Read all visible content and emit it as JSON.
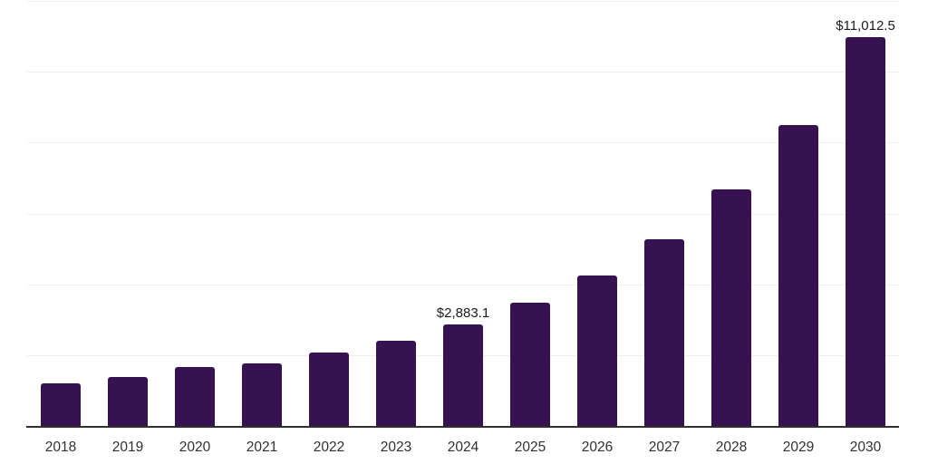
{
  "chart_data": {
    "type": "bar",
    "title": "",
    "subtitle": "",
    "xlabel": "",
    "ylabel": "",
    "categories": [
      "2018",
      "2019",
      "2020",
      "2021",
      "2022",
      "2023",
      "2024",
      "2025",
      "2026",
      "2027",
      "2028",
      "2029",
      "2030"
    ],
    "values": [
      1230,
      1405,
      1690,
      1790,
      2100,
      2430,
      2883.1,
      3505,
      4275,
      5295,
      6705,
      8520,
      11012.5
    ],
    "value_labels": [
      "",
      "",
      "",
      "",
      "",
      "",
      "$2,883.1",
      "",
      "",
      "",
      "",
      "",
      "$11,012.5"
    ],
    "labeled_points": [
      {
        "category": "2024",
        "label": "$2,883.1"
      },
      {
        "category": "2030",
        "label": "$11,012.5"
      }
    ],
    "ylim": [
      0,
      12000
    ],
    "gridline_values": [
      2000,
      4000,
      6000,
      8000,
      10000,
      12000
    ],
    "grid": "horizontal-only",
    "y_axis_tick_labels_visible": false,
    "legend_position": "none",
    "colors": {
      "bar_fill": "#361250",
      "axis_line": "#2f2f2f",
      "gridline": "#f0f0f0",
      "tick_label": "#313131",
      "value_label": "#1b1b1b",
      "background": "#ffffff"
    }
  }
}
